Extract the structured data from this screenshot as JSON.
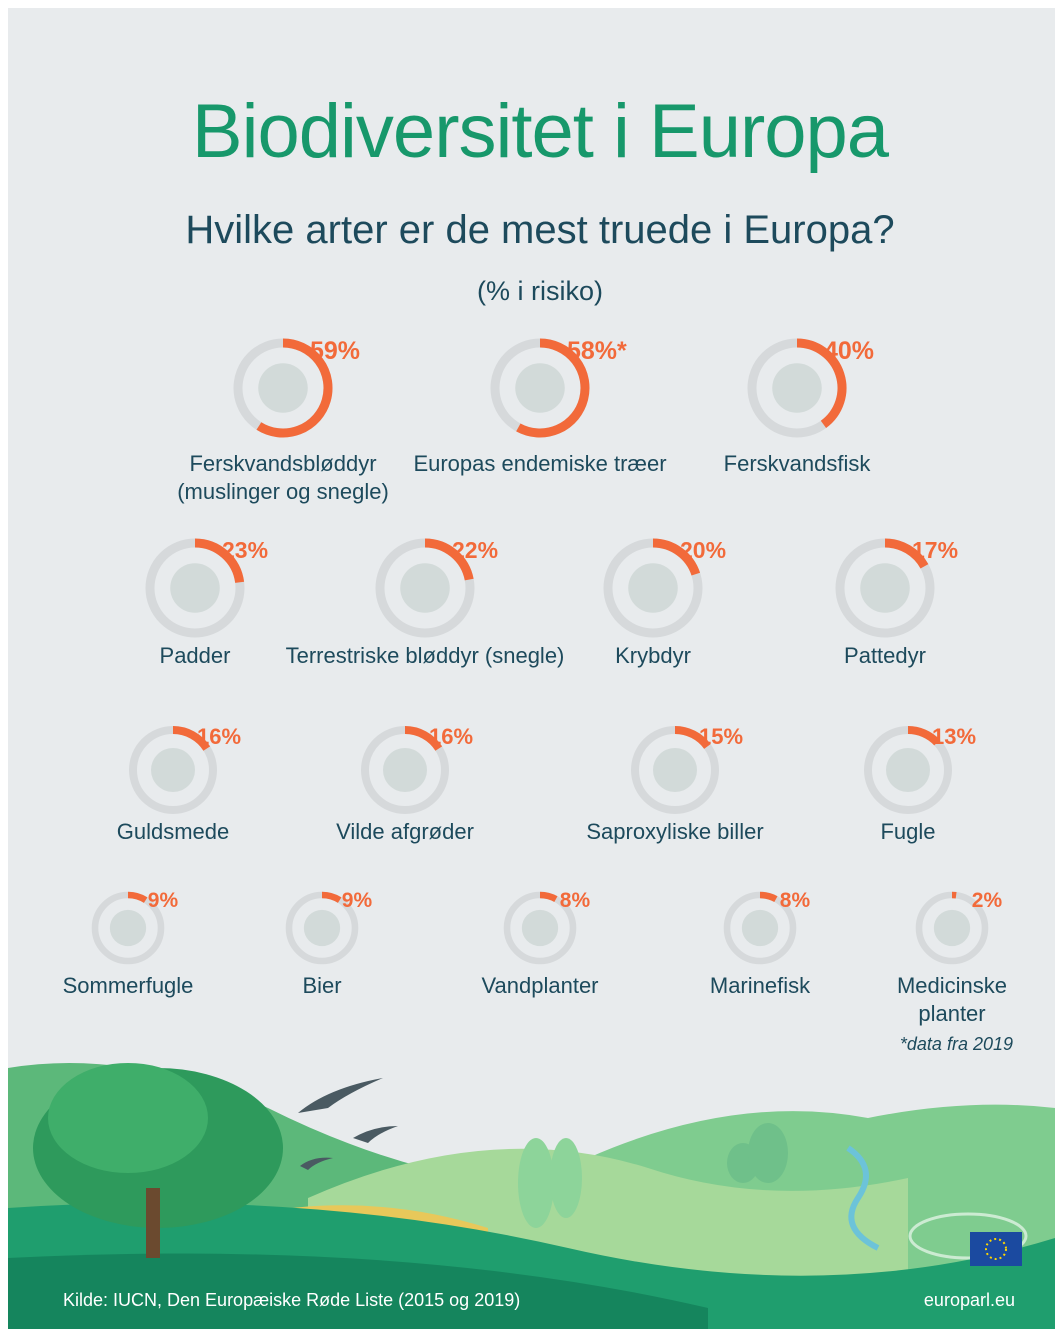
{
  "title": "Biodiversitet i Europa",
  "subtitle": "Hvilke arter er de mest truede i Europa?",
  "unit_note": "(% i risiko)",
  "chart_data": {
    "type": "donut",
    "categories": [
      "Ferskvandsbløddyr\n(muslinger og snegle)",
      "Europas endemiske træer",
      "Ferskvandsfisk",
      "Padder",
      "Terrestriske bløddyr (snegle)",
      "Krybdyr",
      "Pattedyr",
      "Guldsmede",
      "Vilde afgrøder",
      "Saproxyliske biller",
      "Fugle",
      "Sommerfugle",
      "Bier",
      "Vandplanter",
      "Marinefisk",
      "Medicinske planter"
    ],
    "values": [
      59,
      58,
      40,
      23,
      22,
      20,
      17,
      16,
      16,
      15,
      13,
      9,
      9,
      8,
      8,
      2
    ],
    "value_labels": [
      "59%",
      "58%*",
      "40%",
      "23%",
      "22%",
      "20%",
      "17%",
      "16%",
      "16%",
      "15%",
      "13%",
      "9%",
      "9%",
      "8%",
      "8%",
      "2%"
    ],
    "color": "#f26a3a",
    "track_color": "#d6d9db"
  },
  "footnote": "*data fra 2019",
  "source": "Kilde: IUCN, Den Europæiske Røde Liste (2015 og 2019)",
  "brand": "europarl.eu"
}
